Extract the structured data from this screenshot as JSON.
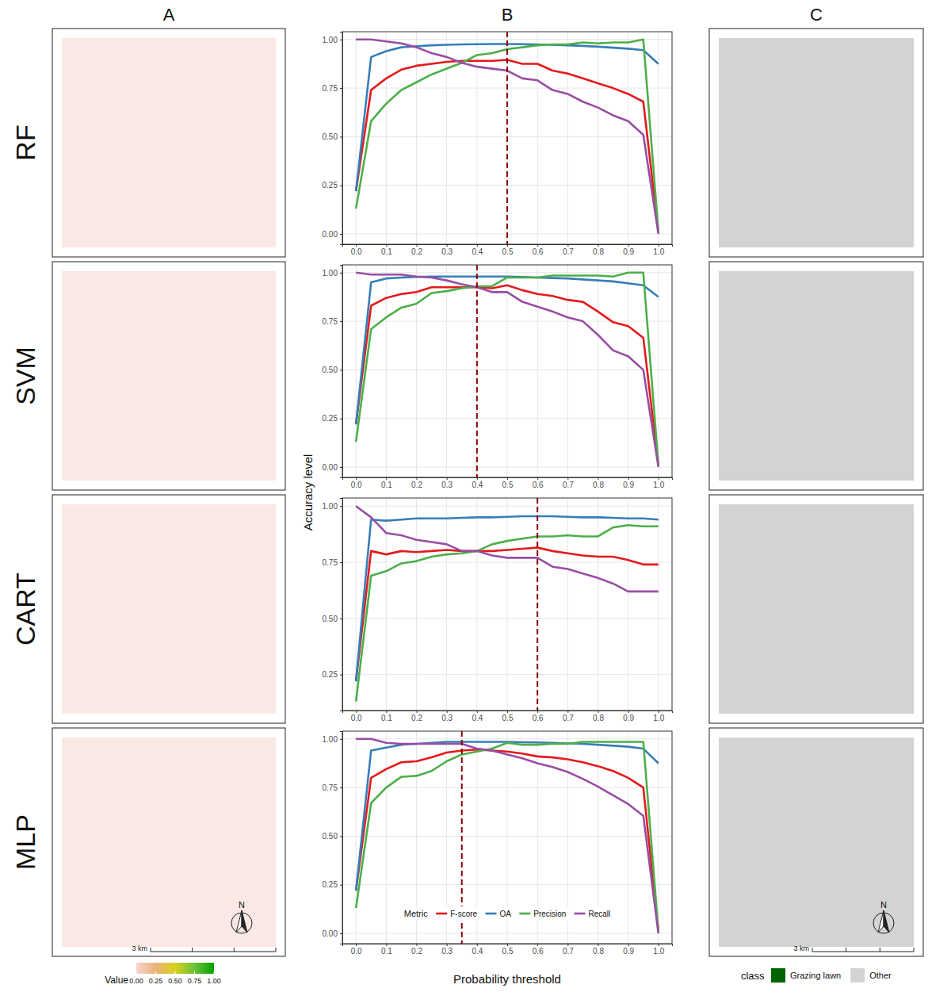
{
  "columns": [
    "A",
    "B",
    "C"
  ],
  "rows": [
    "RF",
    "SVM",
    "CART",
    "MLP"
  ],
  "x_label": "Probability threshold",
  "y_label": "Accuracy level",
  "maps": {
    "colorbar": {
      "title": "Value",
      "range": [
        0,
        1
      ],
      "ticks": [
        {
          "value": 0,
          "label": "0.00"
        },
        0.25,
        {
          "value": 0.5,
          "label": "0.50"
        },
        0.75,
        {
          "value": 1,
          "label": "1.00"
        }
      ],
      "colors": [
        "#f6d5d0",
        "#e9b07a",
        "#d8d21c",
        "#6cc13c",
        "#00a300"
      ]
    },
    "class_legend": {
      "title": "class",
      "classes": [
        {
          "name": "Grazing lawn",
          "color": "#006400"
        },
        {
          "name": "Other",
          "color": "#d3d3d3"
        }
      ]
    },
    "scale_bar": "3 km",
    "north": "N"
  },
  "chart_data": [
    {
      "type": "line",
      "grid": true,
      "threshold": 0.5,
      "x": [
        0,
        0.05,
        0.1,
        0.15,
        0.2,
        0.25,
        0.3,
        0.35,
        0.4,
        0.45,
        0.5,
        0.55,
        0.6,
        0.65,
        0.7,
        0.75,
        0.8,
        0.85,
        0.9,
        0.95,
        1
      ],
      "xlim": [
        -0.045,
        1.045
      ],
      "xticks": [
        {
          "value": 0,
          "label": "0.0"
        },
        0.1,
        0.2,
        0.3,
        0.4,
        0.5,
        0.6,
        0.7,
        0.8,
        0.9,
        {
          "value": 1,
          "label": "1.0"
        }
      ],
      "ylim": [
        -0.053,
        1.04
      ],
      "yticks": [
        {
          "value": 0,
          "label": "0.00"
        },
        0.25,
        {
          "value": 0.5,
          "label": "0.50"
        },
        0.75,
        {
          "value": 1,
          "label": "1.00"
        }
      ],
      "series": [
        {
          "name": "F-score",
          "color": "#e41a1c",
          "values": [
            0.22,
            0.74,
            0.8,
            0.845,
            0.865,
            0.875,
            0.885,
            0.89,
            0.89,
            0.89,
            0.895,
            0.875,
            0.875,
            0.84,
            0.825,
            0.8,
            0.775,
            0.75,
            0.72,
            0.68,
            0.01
          ]
        },
        {
          "name": "OA",
          "color": "#377eb8",
          "values": [
            0.22,
            0.91,
            0.94,
            0.96,
            0.965,
            0.97,
            0.973,
            0.975,
            0.976,
            0.977,
            0.977,
            0.976,
            0.975,
            0.973,
            0.97,
            0.967,
            0.963,
            0.958,
            0.953,
            0.945,
            0.875
          ]
        },
        {
          "name": "Precision",
          "color": "#4daf4a",
          "values": [
            0.13,
            0.58,
            0.67,
            0.74,
            0.78,
            0.82,
            0.85,
            0.88,
            0.92,
            0.93,
            0.95,
            0.96,
            0.97,
            0.975,
            0.975,
            0.985,
            0.98,
            0.985,
            0.985,
            1.0,
            0.01
          ]
        },
        {
          "name": "Recall",
          "color": "#984ea3",
          "values": [
            1,
            1,
            0.99,
            0.98,
            0.96,
            0.93,
            0.91,
            0.88,
            0.86,
            0.85,
            0.84,
            0.8,
            0.79,
            0.74,
            0.72,
            0.68,
            0.65,
            0.61,
            0.58,
            0.51,
            0
          ]
        }
      ]
    },
    {
      "type": "line",
      "grid": true,
      "threshold": 0.4,
      "x": [
        0,
        0.05,
        0.1,
        0.15,
        0.2,
        0.25,
        0.3,
        0.35,
        0.4,
        0.45,
        0.5,
        0.55,
        0.6,
        0.65,
        0.7,
        0.75,
        0.8,
        0.85,
        0.9,
        0.95,
        1
      ],
      "xlim": [
        -0.045,
        1.045
      ],
      "xticks": [
        {
          "value": 0,
          "label": "0.0"
        },
        0.1,
        0.2,
        0.3,
        0.4,
        0.5,
        0.6,
        0.7,
        0.8,
        0.9,
        {
          "value": 1,
          "label": "1.0"
        }
      ],
      "ylim": [
        -0.053,
        1.04
      ],
      "yticks": [
        {
          "value": 0,
          "label": "0.00"
        },
        0.25,
        {
          "value": 0.5,
          "label": "0.50"
        },
        0.75,
        {
          "value": 1,
          "label": "1.00"
        }
      ],
      "series": [
        {
          "name": "F-score",
          "color": "#e41a1c",
          "values": [
            0.22,
            0.83,
            0.87,
            0.89,
            0.9,
            0.925,
            0.925,
            0.925,
            0.925,
            0.92,
            0.935,
            0.91,
            0.89,
            0.88,
            0.86,
            0.85,
            0.8,
            0.745,
            0.725,
            0.665,
            0.01
          ]
        },
        {
          "name": "OA",
          "color": "#377eb8",
          "values": [
            0.22,
            0.95,
            0.97,
            0.975,
            0.978,
            0.98,
            0.98,
            0.98,
            0.98,
            0.98,
            0.98,
            0.978,
            0.975,
            0.972,
            0.97,
            0.965,
            0.96,
            0.955,
            0.945,
            0.935,
            0.875
          ]
        },
        {
          "name": "Precision",
          "color": "#4daf4a",
          "values": [
            0.13,
            0.71,
            0.77,
            0.82,
            0.84,
            0.895,
            0.905,
            0.92,
            0.93,
            0.93,
            0.975,
            0.975,
            0.975,
            0.985,
            0.985,
            0.985,
            0.985,
            0.98,
            1,
            1,
            0.01
          ]
        },
        {
          "name": "Recall",
          "color": "#984ea3",
          "values": [
            1,
            0.99,
            0.99,
            0.99,
            0.98,
            0.975,
            0.96,
            0.94,
            0.925,
            0.9,
            0.9,
            0.85,
            0.825,
            0.8,
            0.77,
            0.75,
            0.68,
            0.6,
            0.57,
            0.5,
            0
          ]
        }
      ]
    },
    {
      "type": "line",
      "grid": true,
      "threshold": 0.6,
      "x": [
        0,
        0.05,
        0.1,
        0.15,
        0.2,
        0.25,
        0.3,
        0.35,
        0.4,
        0.45,
        0.5,
        0.55,
        0.6,
        0.65,
        0.7,
        0.75,
        0.8,
        0.85,
        0.9,
        0.95,
        1
      ],
      "xlim": [
        -0.045,
        1.045
      ],
      "xticks": [
        {
          "value": 0,
          "label": "0.0"
        },
        0.1,
        0.2,
        0.3,
        0.4,
        0.5,
        0.6,
        0.7,
        0.8,
        0.9,
        {
          "value": 1,
          "label": "1.0"
        }
      ],
      "ylim": [
        0.09,
        1.036
      ],
      "yticks": [
        0.25,
        {
          "value": 0.5,
          "label": "0.50"
        },
        0.75,
        {
          "value": 1,
          "label": "1.00"
        }
      ],
      "series": [
        {
          "name": "F-score",
          "color": "#e41a1c",
          "values": [
            0.22,
            0.8,
            0.785,
            0.8,
            0.795,
            0.8,
            0.805,
            0.8,
            0.8,
            0.8,
            0.805,
            0.81,
            0.815,
            0.8,
            0.79,
            0.78,
            0.775,
            0.775,
            0.76,
            0.74,
            0.74
          ]
        },
        {
          "name": "OA",
          "color": "#377eb8",
          "values": [
            0.22,
            0.94,
            0.935,
            0.94,
            0.945,
            0.945,
            0.945,
            0.948,
            0.95,
            0.95,
            0.952,
            0.955,
            0.955,
            0.955,
            0.952,
            0.95,
            0.95,
            0.948,
            0.945,
            0.945,
            0.94
          ]
        },
        {
          "name": "Precision",
          "color": "#4daf4a",
          "values": [
            0.13,
            0.69,
            0.71,
            0.745,
            0.755,
            0.775,
            0.785,
            0.79,
            0.8,
            0.83,
            0.845,
            0.855,
            0.865,
            0.865,
            0.87,
            0.865,
            0.865,
            0.905,
            0.915,
            0.91,
            0.91
          ]
        },
        {
          "name": "Recall",
          "color": "#984ea3",
          "values": [
            1,
            0.95,
            0.88,
            0.87,
            0.85,
            0.84,
            0.83,
            0.8,
            0.8,
            0.78,
            0.77,
            0.77,
            0.77,
            0.73,
            0.72,
            0.7,
            0.68,
            0.655,
            0.62,
            0.62,
            0.62
          ]
        }
      ]
    },
    {
      "type": "line",
      "grid": true,
      "threshold": 0.35,
      "legend": "bottom",
      "legend_title": "Metric",
      "x": [
        0,
        0.05,
        0.1,
        0.15,
        0.2,
        0.25,
        0.3,
        0.35,
        0.4,
        0.45,
        0.5,
        0.55,
        0.6,
        0.65,
        0.7,
        0.75,
        0.8,
        0.85,
        0.9,
        0.95,
        1
      ],
      "xlim": [
        -0.045,
        1.045
      ],
      "xticks": [
        {
          "value": 0,
          "label": "0.0"
        },
        0.1,
        0.2,
        0.3,
        0.4,
        0.5,
        0.6,
        0.7,
        0.8,
        0.9,
        {
          "value": 1,
          "label": "1.0"
        }
      ],
      "ylim": [
        -0.053,
        1.04
      ],
      "yticks": [
        {
          "value": 0,
          "label": "0.00"
        },
        0.25,
        {
          "value": 0.5,
          "label": "0.50"
        },
        0.75,
        {
          "value": 1,
          "label": "1.00"
        }
      ],
      "series": [
        {
          "name": "F-score",
          "color": "#e41a1c",
          "values": [
            0.22,
            0.8,
            0.845,
            0.88,
            0.885,
            0.905,
            0.93,
            0.94,
            0.945,
            0.94,
            0.935,
            0.925,
            0.91,
            0.905,
            0.895,
            0.88,
            0.86,
            0.835,
            0.8,
            0.75,
            0.01
          ]
        },
        {
          "name": "OA",
          "color": "#377eb8",
          "values": [
            0.22,
            0.94,
            0.955,
            0.97,
            0.975,
            0.98,
            0.985,
            0.985,
            0.985,
            0.985,
            0.985,
            0.983,
            0.982,
            0.98,
            0.977,
            0.975,
            0.97,
            0.965,
            0.96,
            0.95,
            0.875
          ]
        },
        {
          "name": "Precision",
          "color": "#4daf4a",
          "values": [
            0.13,
            0.67,
            0.75,
            0.805,
            0.81,
            0.835,
            0.885,
            0.92,
            0.935,
            0.95,
            0.98,
            0.97,
            0.97,
            0.975,
            0.975,
            0.985,
            0.985,
            0.985,
            0.985,
            0.985,
            0.01
          ]
        },
        {
          "name": "Recall",
          "color": "#984ea3",
          "values": [
            1,
            1,
            0.98,
            0.975,
            0.975,
            0.975,
            0.975,
            0.975,
            0.95,
            0.94,
            0.92,
            0.9,
            0.875,
            0.855,
            0.83,
            0.795,
            0.755,
            0.71,
            0.665,
            0.605,
            0
          ]
        }
      ]
    }
  ]
}
